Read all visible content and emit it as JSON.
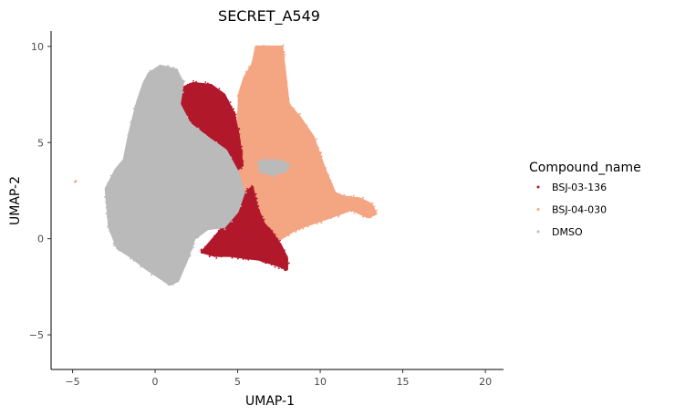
{
  "chart_data": {
    "type": "scatter",
    "title": "SECRET_A549",
    "xlabel": "UMAP-1",
    "ylabel": "UMAP-2",
    "xlim": [
      -6.3,
      21.1
    ],
    "ylim": [
      -6.8,
      10.8
    ],
    "xticks": [
      -5,
      0,
      5,
      10,
      15,
      20
    ],
    "yticks": [
      -5,
      0,
      5,
      10
    ],
    "x_tick_labels": [
      "−5",
      "0",
      "5",
      "10",
      "15",
      "20"
    ],
    "y_tick_labels": [
      "−5",
      "0",
      "5",
      "10"
    ],
    "grid": false,
    "legend": {
      "title": "Compound_name",
      "position": "right"
    },
    "series": [
      {
        "name": "BSJ-03-136",
        "color": "#b2182b",
        "regions": [
          [
            [
              1.5,
              7.8
            ],
            [
              2.3,
              8.1
            ],
            [
              3.4,
              8.0
            ],
            [
              4.2,
              7.5
            ],
            [
              4.8,
              6.5
            ],
            [
              5.1,
              5.2
            ],
            [
              5.3,
              3.8
            ],
            [
              5.0,
              3.6
            ],
            [
              4.3,
              4.6
            ],
            [
              3.3,
              5.1
            ],
            [
              2.4,
              5.7
            ],
            [
              1.6,
              6.6
            ],
            [
              1.4,
              7.3
            ]
          ],
          [
            [
              2.8,
              -0.7
            ],
            [
              3.4,
              -0.1
            ],
            [
              4.2,
              0.7
            ],
            [
              4.9,
              1.4
            ],
            [
              5.3,
              2.3
            ],
            [
              5.9,
              2.7
            ],
            [
              6.2,
              1.6
            ],
            [
              6.6,
              0.8
            ],
            [
              7.1,
              0.3
            ],
            [
              7.6,
              -0.3
            ],
            [
              8.0,
              -1.0
            ],
            [
              8.0,
              -1.6
            ],
            [
              7.4,
              -1.4
            ],
            [
              6.3,
              -1.1
            ],
            [
              5.4,
              -1.0
            ],
            [
              4.5,
              -0.9
            ],
            [
              3.6,
              -0.9
            ]
          ]
        ]
      },
      {
        "name": "BSJ-04-030",
        "color": "#f4a582",
        "regions": [
          [
            [
              5.9,
              9.1
            ],
            [
              6.1,
              10.0
            ],
            [
              7.1,
              10.0
            ],
            [
              7.7,
              10.0
            ],
            [
              7.9,
              8.5
            ],
            [
              8.1,
              7.0
            ],
            [
              8.8,
              6.3
            ],
            [
              9.6,
              5.3
            ],
            [
              10.3,
              3.6
            ],
            [
              10.9,
              2.4
            ],
            [
              11.4,
              2.2
            ],
            [
              12.4,
              2.1
            ],
            [
              13.1,
              1.8
            ],
            [
              13.4,
              1.3
            ],
            [
              12.9,
              1.1
            ],
            [
              11.9,
              1.5
            ],
            [
              10.6,
              1.1
            ],
            [
              9.6,
              0.8
            ],
            [
              8.6,
              0.5
            ],
            [
              7.6,
              0.0
            ],
            [
              6.9,
              -0.3
            ],
            [
              6.2,
              0.3
            ],
            [
              5.6,
              1.4
            ],
            [
              5.2,
              2.4
            ],
            [
              5.0,
              3.6
            ],
            [
              5.2,
              4.9
            ],
            [
              5.0,
              6.2
            ],
            [
              5.1,
              7.6
            ],
            [
              5.4,
              8.4
            ]
          ]
        ],
        "extra_points": [
          [
            -4.8,
            3.0
          ],
          [
            -4.85,
            2.95
          ]
        ]
      },
      {
        "name": "DMSO",
        "color": "#bababa",
        "regions": [
          [
            [
              -0.4,
              8.6
            ],
            [
              0.3,
              9.0
            ],
            [
              1.3,
              8.8
            ],
            [
              1.7,
              8.1
            ],
            [
              1.5,
              7.0
            ],
            [
              2.1,
              6.0
            ],
            [
              3.3,
              5.2
            ],
            [
              4.3,
              4.6
            ],
            [
              5.0,
              3.5
            ],
            [
              5.4,
              2.4
            ],
            [
              5.0,
              1.4
            ],
            [
              4.2,
              0.6
            ],
            [
              3.2,
              0.5
            ],
            [
              2.4,
              0.0
            ],
            [
              1.9,
              -1.2
            ],
            [
              1.4,
              -2.2
            ],
            [
              0.9,
              -2.4
            ],
            [
              0.2,
              -2.0
            ],
            [
              -0.5,
              -1.6
            ],
            [
              -1.4,
              -1.0
            ],
            [
              -2.3,
              -0.5
            ],
            [
              -2.8,
              0.6
            ],
            [
              -3.0,
              2.6
            ],
            [
              -2.4,
              3.6
            ],
            [
              -1.9,
              4.1
            ],
            [
              -1.6,
              5.4
            ],
            [
              -1.1,
              7.1
            ],
            [
              -0.7,
              8.1
            ]
          ],
          [
            [
              6.3,
              4.0
            ],
            [
              7.1,
              4.1
            ],
            [
              8.1,
              3.9
            ],
            [
              7.9,
              3.5
            ],
            [
              7.1,
              3.3
            ],
            [
              6.4,
              3.5
            ]
          ]
        ]
      }
    ]
  }
}
